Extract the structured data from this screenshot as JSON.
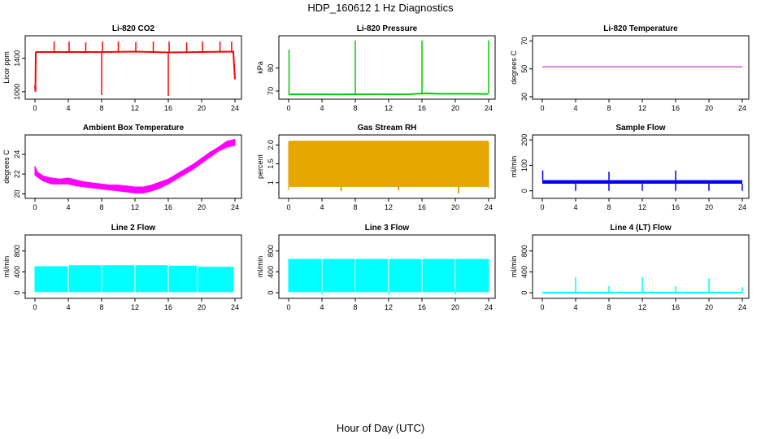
{
  "figure": {
    "title": "HDP_160612 1 Hz Diagnostics",
    "xlabel": "Hour of Day (UTC)"
  },
  "chart_data": [
    {
      "type": "line",
      "title": "Li-820 CO2",
      "ylabel": "Licor ppm",
      "color": "#ff0000",
      "xlim": [
        0,
        24
      ],
      "xticks": [
        0,
        4,
        8,
        12,
        16,
        20,
        24
      ],
      "ylim": [
        940,
        1640
      ],
      "yticks": [
        1000,
        1400
      ],
      "x": [
        0,
        0.05,
        0.1,
        0.2,
        4,
        8,
        12,
        16,
        20,
        23.8,
        24
      ],
      "y": [
        1070,
        1000,
        1470,
        1475,
        1475,
        1475,
        1480,
        1470,
        1475,
        1480,
        1150
      ],
      "spikes_up": [
        {
          "x": 2.3,
          "y": 1600
        },
        {
          "x": 4.1,
          "y": 1600
        },
        {
          "x": 6.1,
          "y": 1590
        },
        {
          "x": 8.1,
          "y": 1600
        },
        {
          "x": 10.0,
          "y": 1600
        },
        {
          "x": 12.1,
          "y": 1595
        },
        {
          "x": 14.2,
          "y": 1600
        },
        {
          "x": 16.1,
          "y": 1600
        },
        {
          "x": 18.2,
          "y": 1590
        },
        {
          "x": 20.1,
          "y": 1600
        },
        {
          "x": 22.2,
          "y": 1600
        },
        {
          "x": 23.6,
          "y": 1600
        }
      ],
      "spikes_down": [
        {
          "x": 8.0,
          "y": 960
        },
        {
          "x": 16.0,
          "y": 950
        }
      ]
    },
    {
      "type": "line",
      "title": "Li-820 Pressure",
      "ylabel": "kPa",
      "color": "#00cc00",
      "xlim": [
        0,
        24
      ],
      "xticks": [
        0,
        4,
        8,
        12,
        16,
        20,
        24
      ],
      "ylim": [
        67.5,
        93
      ],
      "yticks": [
        70,
        80
      ],
      "x": [
        0,
        0.1,
        2,
        6,
        10,
        14,
        16.5,
        18,
        22,
        23.9
      ],
      "y": [
        68.5,
        68.5,
        68.6,
        68.5,
        68.6,
        68.5,
        69.0,
        68.8,
        68.8,
        68.7
      ],
      "spikes_up": [
        {
          "x": 0.05,
          "y": 88
        },
        {
          "x": 8.0,
          "y": 92
        },
        {
          "x": 16.0,
          "y": 92
        },
        {
          "x": 24.0,
          "y": 92
        }
      ],
      "spikes_down": []
    },
    {
      "type": "line",
      "title": "Li-820 Temperature",
      "ylabel": "degrees C",
      "color": "#cc00cc",
      "xlim": [
        0,
        24
      ],
      "xticks": [
        0,
        4,
        8,
        12,
        16,
        20,
        24
      ],
      "ylim": [
        30,
        72
      ],
      "yticks": [
        30,
        50,
        70
      ],
      "x": [
        0,
        24
      ],
      "y": [
        51.5,
        51.5
      ],
      "spikes_up": [],
      "spikes_down": []
    },
    {
      "type": "area",
      "title": "Ambient Box Temperature",
      "ylabel": "degrees C",
      "color": "#ff00ff",
      "xlim": [
        0,
        24
      ],
      "xticks": [
        0,
        4,
        8,
        12,
        16,
        20,
        24
      ],
      "ylim": [
        19.8,
        25.7
      ],
      "yticks": [
        20,
        22,
        24
      ],
      "x": [
        0,
        0.3,
        1,
        2,
        3,
        4,
        5,
        6,
        7,
        8,
        9,
        10,
        11,
        12,
        13,
        14,
        15,
        16,
        17,
        18,
        19,
        20,
        21,
        22,
        23,
        24
      ],
      "y_low": [
        21.9,
        21.7,
        21.3,
        21.0,
        21.0,
        21.0,
        20.8,
        20.7,
        20.6,
        20.5,
        20.4,
        20.3,
        20.2,
        20.1,
        20.1,
        20.3,
        20.6,
        21.0,
        21.5,
        22.0,
        22.5,
        23.1,
        23.7,
        24.3,
        24.7,
        24.9
      ],
      "y_high": [
        22.8,
        22.2,
        21.8,
        21.6,
        21.5,
        21.6,
        21.4,
        21.2,
        21.1,
        21.0,
        20.9,
        20.9,
        20.8,
        20.7,
        20.7,
        20.9,
        21.2,
        21.5,
        22.0,
        22.5,
        23.0,
        23.6,
        24.2,
        24.7,
        25.3,
        25.5
      ],
      "spikes_up": [],
      "spikes_down": []
    },
    {
      "type": "area",
      "title": "Gas Stream RH",
      "ylabel": "percent",
      "color": "#e6a600",
      "xlim": [
        0,
        24
      ],
      "xticks": [
        0,
        4,
        8,
        12,
        16,
        20,
        24
      ],
      "ylim": [
        0.65,
        2.2
      ],
      "yticks": [
        1.0,
        1.5,
        2.0
      ],
      "ytick_labels": [
        "1",
        "1.5",
        "2.0"
      ],
      "x": [
        0,
        0.05,
        23.95,
        24
      ],
      "y_low": [
        0.8,
        0.9,
        0.9,
        0.85
      ],
      "y_high": [
        2.05,
        2.1,
        2.1,
        2.05
      ],
      "spikes_up": [],
      "spikes_down": [
        {
          "x": 6.3,
          "y": 0.78
        },
        {
          "x": 13.2,
          "y": 0.8
        },
        {
          "x": 20.4,
          "y": 0.72
        }
      ]
    },
    {
      "type": "line",
      "title": "Sample Flow",
      "ylabel": "ml/min",
      "color": "#0000ff",
      "xlim": [
        0,
        24
      ],
      "xticks": [
        0,
        4,
        8,
        12,
        16,
        20,
        24
      ],
      "ylim": [
        -20,
        210
      ],
      "yticks": [
        0,
        100,
        200
      ],
      "x": [
        0,
        0.1,
        24
      ],
      "y": [
        35,
        35,
        35
      ],
      "band": [
        28,
        42
      ],
      "spikes_up": [
        {
          "x": 0.05,
          "y": 80
        },
        {
          "x": 8.0,
          "y": 75
        },
        {
          "x": 16.0,
          "y": 80
        }
      ],
      "spikes_down": [
        {
          "x": 4.0,
          "y": 0
        },
        {
          "x": 8.0,
          "y": 0
        },
        {
          "x": 12.0,
          "y": 0
        },
        {
          "x": 16.0,
          "y": 0
        },
        {
          "x": 20.0,
          "y": 0
        },
        {
          "x": 24.0,
          "y": 0
        }
      ]
    },
    {
      "type": "area",
      "title": "Line 2 Flow",
      "ylabel": "ml/min",
      "color": "#00ffff",
      "xlim": [
        0,
        24
      ],
      "xticks": [
        0,
        4,
        8,
        12,
        16,
        20,
        24
      ],
      "ylim": [
        -60,
        1060
      ],
      "yticks": [
        0,
        400,
        800
      ],
      "x": [
        0,
        3.9,
        4.1,
        7.9,
        8.1,
        11.9,
        12.1,
        15.9,
        16.1,
        19.4,
        19.6,
        23.8
      ],
      "y_low": [
        20,
        20,
        20,
        20,
        20,
        20,
        20,
        20,
        20,
        20,
        20,
        20
      ],
      "y_high": [
        500,
        500,
        520,
        520,
        520,
        520,
        520,
        520,
        510,
        510,
        490,
        490
      ],
      "gaps": [
        4.0,
        8.0,
        12.0,
        16.0,
        19.5
      ],
      "spikes_up": [],
      "spikes_down": []
    },
    {
      "type": "area",
      "title": "Line 3 Flow",
      "ylabel": "ml/min",
      "color": "#00ffff",
      "xlim": [
        0,
        24
      ],
      "xticks": [
        0,
        4,
        8,
        12,
        16,
        20,
        24
      ],
      "ylim": [
        -60,
        1060
      ],
      "yticks": [
        0,
        400,
        800
      ],
      "x": [
        0,
        24
      ],
      "y_low": [
        20,
        20
      ],
      "y_high": [
        640,
        640
      ],
      "gaps": [
        4.0,
        8.0,
        12.0,
        16.0,
        20.0
      ],
      "spikes_up": [],
      "spikes_down": [
        {
          "x": 4.0,
          "y": -30
        },
        {
          "x": 12.0,
          "y": -30
        },
        {
          "x": 20.0,
          "y": -30
        }
      ]
    },
    {
      "type": "line",
      "title": "Line 4 (LT) Flow",
      "ylabel": "ml/min",
      "color": "#00ffff",
      "xlim": [
        0,
        24
      ],
      "xticks": [
        0,
        4,
        8,
        12,
        16,
        20,
        24
      ],
      "ylim": [
        -60,
        1060
      ],
      "yticks": [
        0,
        400,
        800
      ],
      "x": [
        0,
        24
      ],
      "y": [
        5,
        5
      ],
      "spikes_up": [
        {
          "x": 4.0,
          "y": 300
        },
        {
          "x": 8.0,
          "y": 130
        },
        {
          "x": 12.0,
          "y": 300
        },
        {
          "x": 16.0,
          "y": 130
        },
        {
          "x": 20.0,
          "y": 280
        },
        {
          "x": 24.0,
          "y": 110
        }
      ],
      "spikes_down": []
    }
  ]
}
